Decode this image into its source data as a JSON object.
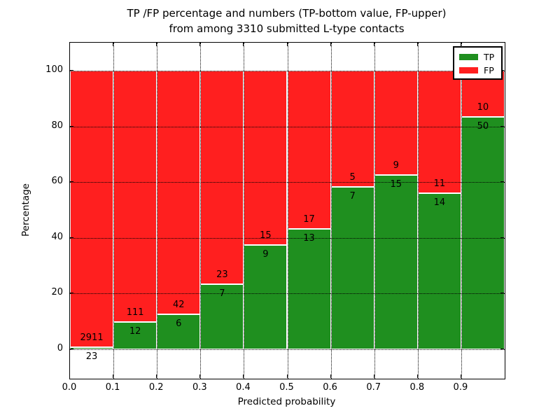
{
  "figure": {
    "title_line1": "TP /FP percentage and numbers (TP-bottom value, FP-upper)",
    "title_line2": "from among 3310 submitted L-type contacts",
    "xlabel": "Predicted probability",
    "ylabel": "Percentage"
  },
  "chart_data": {
    "type": "bar",
    "stacked": true,
    "title": "TP /FP percentage and numbers (TP-bottom value, FP-upper) from among 3310 submitted L-type contacts",
    "xlabel": "Predicted probability",
    "ylabel": "Percentage",
    "total_contacts": 3310,
    "bin_width": 0.1,
    "x_tick_labels": [
      "0.0",
      "0.1",
      "0.2",
      "0.3",
      "0.4",
      "0.5",
      "0.6",
      "0.7",
      "0.8",
      "0.9"
    ],
    "y_ticks": [
      0,
      20,
      40,
      60,
      80,
      100
    ],
    "xlim": [
      0.0,
      1.0
    ],
    "ylim": [
      -10.5,
      110
    ],
    "grid": "dotted black, drawn above bars",
    "bar_edge_color": "#ffffff",
    "legend": {
      "position": "upper right",
      "entries": [
        {
          "label": "TP",
          "color": "#1f8f1f"
        },
        {
          "label": "FP",
          "color": "#ff1f1f"
        }
      ]
    },
    "bins": [
      {
        "range": "0.0-0.1",
        "tp": 23,
        "fp": 2911,
        "tp_percent": 0.78
      },
      {
        "range": "0.1-0.2",
        "tp": 12,
        "fp": 111,
        "tp_percent": 9.76
      },
      {
        "range": "0.2-0.3",
        "tp": 6,
        "fp": 42,
        "tp_percent": 12.5
      },
      {
        "range": "0.3-0.4",
        "tp": 7,
        "fp": 23,
        "tp_percent": 23.33
      },
      {
        "range": "0.4-0.5",
        "tp": 9,
        "fp": 15,
        "tp_percent": 37.5
      },
      {
        "range": "0.5-0.6",
        "tp": 13,
        "fp": 17,
        "tp_percent": 43.33
      },
      {
        "range": "0.6-0.7",
        "tp": 7,
        "fp": 5,
        "tp_percent": 58.33
      },
      {
        "range": "0.7-0.8",
        "tp": 15,
        "fp": 9,
        "tp_percent": 62.5
      },
      {
        "range": "0.8-0.9",
        "tp": 14,
        "fp": 11,
        "tp_percent": 56.0
      },
      {
        "range": "0.9-1.0",
        "tp": 50,
        "fp": 10,
        "tp_percent": 83.33
      }
    ],
    "series": [
      {
        "name": "TP",
        "color": "#1f8f1f",
        "values": [
          23,
          12,
          6,
          7,
          9,
          13,
          7,
          15,
          14,
          50
        ]
      },
      {
        "name": "FP",
        "color": "#ff1f1f",
        "values": [
          2911,
          111,
          42,
          23,
          15,
          17,
          5,
          9,
          11,
          10
        ]
      }
    ]
  }
}
